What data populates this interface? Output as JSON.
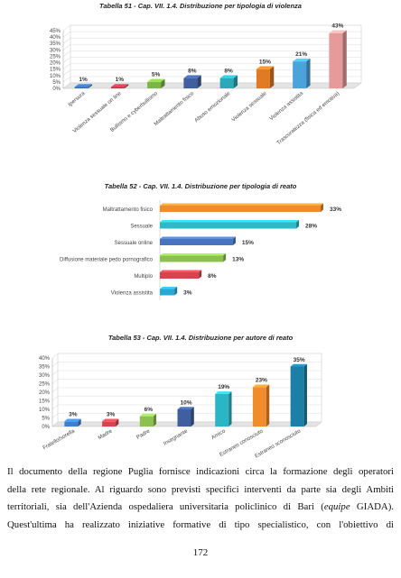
{
  "chart_data": [
    {
      "type": "bar",
      "title": "Tabella 51 - Cap. VII. 1.4. Distribuzione per tipologia di violenza",
      "categories": [
        "Ipersura",
        "Violenza sessuale on line",
        "Bullismo e cyberbullismo",
        "Maltrattamento fisico",
        "Abuso emozionale",
        "Violenza sessuale",
        "Violenza assistita",
        "Trascuratezza (fisica ed emotiva)"
      ],
      "values": [
        1,
        1,
        5,
        8,
        8,
        15,
        21,
        43
      ],
      "value_labels": [
        "1%",
        "1%",
        "5%",
        "8%",
        "8%",
        "15%",
        "21%",
        "43%"
      ],
      "yticks": [
        "0%",
        "5%",
        "10%",
        "15%",
        "20%",
        "25%",
        "30%",
        "35%",
        "40%",
        "45%"
      ],
      "ylim": [
        0,
        45
      ],
      "colors": [
        "#3a6fb5",
        "#c0394b",
        "#7bb544",
        "#3f5f9e",
        "#2ba9b8",
        "#e07b22",
        "#4aa3dc",
        "#e79a9a"
      ],
      "grid": true
    },
    {
      "type": "bar",
      "orientation": "horizontal",
      "title": "Tabella 52 - Cap. VII. 1.4. Distribuzione per tipologia di reato",
      "categories": [
        "Maltrattamento fisico",
        "Sessuale",
        "Sessuale online",
        "Diffusione materiale pedo pornografico",
        "Multiplo",
        "Violenza assistita"
      ],
      "values": [
        33,
        28,
        15,
        13,
        8,
        3
      ],
      "value_labels": [
        "33%",
        "28%",
        "15%",
        "13%",
        "8%",
        "3%"
      ],
      "xlim": [
        0,
        33
      ],
      "colors": [
        "#f08c2e",
        "#2db9c7",
        "#4a73bd",
        "#8cc152",
        "#d9434e",
        "#2aa8d4"
      ]
    },
    {
      "type": "bar",
      "title": "Tabella 53 - Cap. VII. 1.4. Distribuzione per autore di reato",
      "categories": [
        "Fratello/sorella",
        "Madre",
        "Padre",
        "Insegnante",
        "Amico",
        "Estraneo conosciuto",
        "Estraneo sconosciuto"
      ],
      "values": [
        3,
        3,
        6,
        10,
        19,
        23,
        35
      ],
      "value_labels": [
        "3%",
        "3%",
        "6%",
        "10%",
        "19%",
        "23%",
        "35%"
      ],
      "yticks": [
        "0%",
        "5%",
        "10%",
        "15%",
        "20%",
        "25%",
        "30%",
        "35%",
        "40%"
      ],
      "ylim": [
        0,
        40
      ],
      "colors": [
        "#3a7fd0",
        "#d9434e",
        "#8cc152",
        "#3f5f9e",
        "#2ab6c4",
        "#f08c2e",
        "#1b7fa6"
      ],
      "grid": true
    }
  ],
  "paragraph": {
    "line1": "Il documento della regione Puglia fornisce indicazioni circa la formazione degli operatori",
    "line2": "della rete regionale. Al riguardo sono previsti specifici interventi da parte sia degli Ambiti",
    "line3a": "territoriali, sia dell'Azienda ospedaliera universitaria policlinico di Bari (",
    "line3b": "equipe",
    "line3c": " GIADA).",
    "line4": "Quest'ultima ha realizzato iniziative formative di tipo specialistico, con l'obiettivo di"
  },
  "page_number": "172"
}
